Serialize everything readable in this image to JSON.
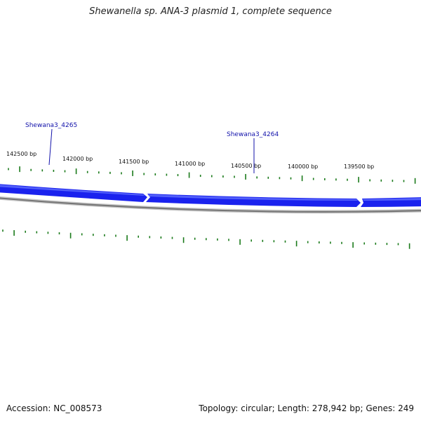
{
  "title": "Shewanella sp. ANA-3 plasmid 1, complete sequence",
  "footer": {
    "accession": "Accession: NC_008573",
    "summary": "Topology: circular; Length: 278,942 bp; Genes: 249"
  },
  "tick_labels": [
    "142500 bp",
    "142000 bp",
    "141500 bp",
    "141000 bp",
    "140500 bp",
    "140000 bp",
    "139500 bp"
  ],
  "gene_labels": [
    "Shewana3_4265",
    "Shewana3_4264"
  ],
  "colors": {
    "gene_blue": "#1a22ee",
    "gene_blue_light": "#5a6cff",
    "backbone_gray": "#808080",
    "tick_green": "#1a7a1a",
    "label_blue": "#1111aa"
  }
}
